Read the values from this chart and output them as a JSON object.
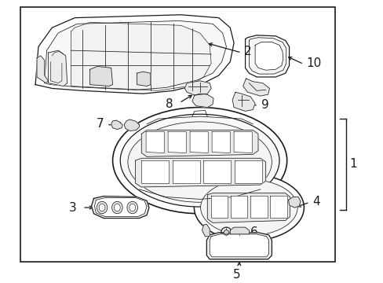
{
  "bg_color": "#ffffff",
  "border_color": "#000000",
  "line_color": "#1a1a1a",
  "text_color": "#1a1a1a",
  "fig_width": 4.89,
  "fig_height": 3.6,
  "dpi": 100,
  "lw_main": 0.9,
  "lw_detail": 0.55,
  "label_fontsize": 11
}
